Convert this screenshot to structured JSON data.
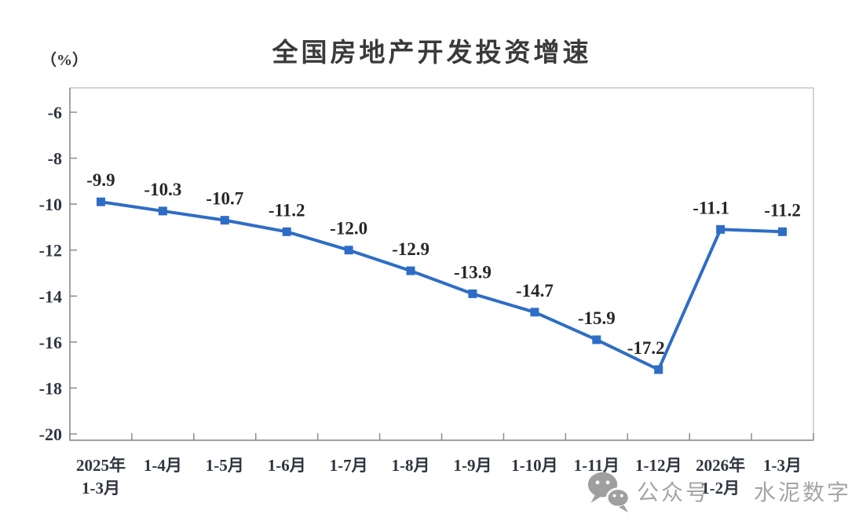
{
  "title": "全国房地产开发投资增速",
  "y_axis_unit_label": "（%）",
  "watermark": {
    "icon": "wechat-icon",
    "text_left": "公众号",
    "text_right": "水泥数字",
    "color": "#a5a5a5"
  },
  "chart_data": {
    "type": "line",
    "title": "全国房地产开发投资增速",
    "ylabel": "（%）",
    "categories": [
      [
        "2025年",
        "1-3月"
      ],
      [
        "1-4月"
      ],
      [
        "1-5月"
      ],
      [
        "1-6月"
      ],
      [
        "1-7月"
      ],
      [
        "1-8月"
      ],
      [
        "1-9月"
      ],
      [
        "1-10月"
      ],
      [
        "1-11月"
      ],
      [
        "1-12月"
      ],
      [
        "2026年",
        "1-2月"
      ],
      [
        "1-3月"
      ]
    ],
    "values": [
      -9.9,
      -10.3,
      -10.7,
      -11.2,
      -12.0,
      -12.9,
      -13.9,
      -14.7,
      -15.9,
      -17.2,
      -11.1,
      -11.2
    ],
    "data_labels": [
      "-9.9",
      "-10.3",
      "-10.7",
      "-11.2",
      "-12.0",
      "-12.9",
      "-13.9",
      "-14.7",
      "-15.9",
      "-17.2",
      "-11.1",
      "-11.2"
    ],
    "label_dx": [
      0,
      0,
      0,
      0,
      0,
      0,
      0,
      0,
      0,
      -16,
      -12,
      0
    ],
    "y_ticks": [
      -6,
      -8,
      -10,
      -12,
      -14,
      -16,
      -18,
      -20
    ],
    "ylim": [
      -20.3,
      -4.9
    ],
    "grid": false,
    "legend": "none",
    "line_color": "#2e6dc5",
    "marker": "square",
    "marker_size": 11,
    "line_width": 4,
    "data_label_color": "#262626",
    "axis_text_color": "#2f3440",
    "axis_line_color": "#8d8d8d",
    "border_color": "#c6c6c6"
  }
}
